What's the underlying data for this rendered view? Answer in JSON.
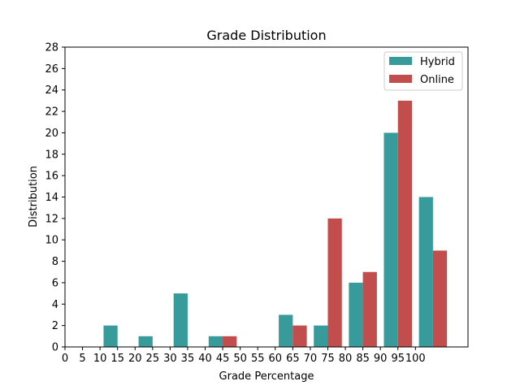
{
  "chart_data": {
    "type": "bar",
    "title": "Grade Distribution",
    "xlabel": "Grade Percentage",
    "ylabel": "Distribution",
    "categories": [
      "10-15",
      "20-25",
      "30-35",
      "40-45",
      "60-65",
      "70-75",
      "80-85",
      "90-95",
      "100"
    ],
    "x_centers": [
      15,
      25,
      35,
      45,
      65,
      75,
      85,
      95,
      105
    ],
    "series": [
      {
        "name": "Hybrid",
        "color": "#379b9b",
        "values": [
          2,
          1,
          5,
          1,
          3,
          2,
          6,
          20,
          14
        ]
      },
      {
        "name": "Online",
        "color": "#c14d4d",
        "values": [
          0,
          0,
          0,
          1,
          2,
          12,
          7,
          23,
          9
        ]
      }
    ],
    "xlim": [
      0,
      115
    ],
    "ylim": [
      0,
      28
    ],
    "xticks": [
      0,
      5,
      10,
      15,
      20,
      25,
      30,
      35,
      40,
      45,
      50,
      55,
      60,
      65,
      70,
      75,
      80,
      85,
      90,
      95,
      100
    ],
    "xtick_labels": [
      "0",
      "5",
      "10",
      "15",
      "20",
      "25",
      "30",
      "35",
      "40",
      "45",
      "50",
      "55",
      "60",
      "65",
      "70",
      "75",
      "80",
      "85",
      "90",
      "95",
      "100"
    ],
    "yticks": [
      0,
      2,
      4,
      6,
      8,
      10,
      12,
      14,
      16,
      18,
      20,
      22,
      24,
      26,
      28
    ],
    "ytick_labels": [
      "0",
      "2",
      "4",
      "6",
      "8",
      "10",
      "12",
      "14",
      "16",
      "18",
      "20",
      "22",
      "24",
      "26",
      "28"
    ],
    "legend_position": "top-right",
    "grid": false
  }
}
